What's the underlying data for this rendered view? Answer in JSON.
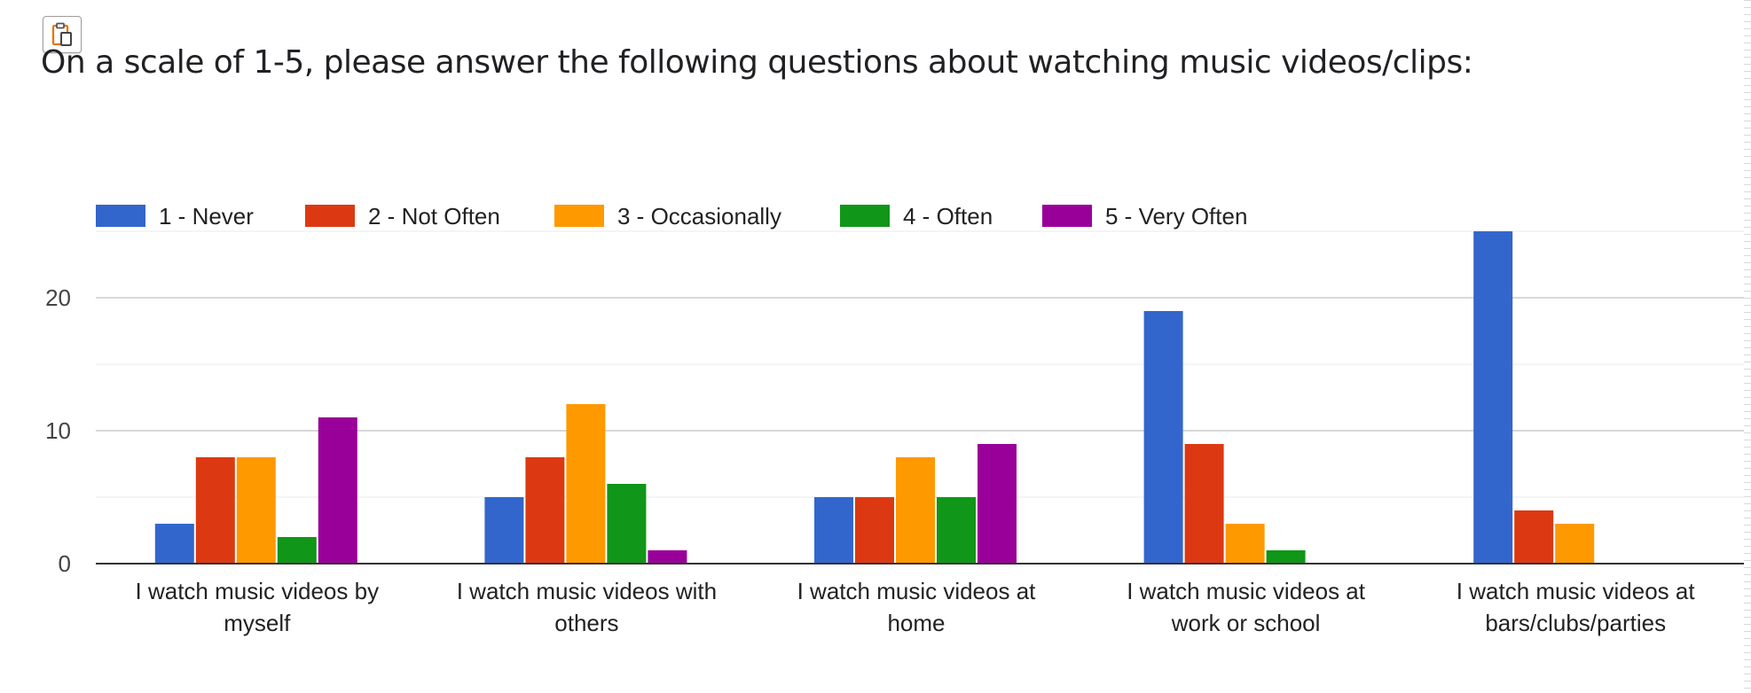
{
  "title": "On a scale of 1-5, please answer the following questions about watching music videos/clips:",
  "copy_icon": "clipboard-copy-icon",
  "chart_data": {
    "type": "bar",
    "categories": [
      [
        "I watch music videos by",
        "myself"
      ],
      [
        "I watch music videos with",
        "others"
      ],
      [
        "I watch music videos at",
        "home"
      ],
      [
        "I watch music videos at",
        "work or school"
      ],
      [
        "I watch music videos at",
        "bars/clubs/parties"
      ]
    ],
    "series": [
      {
        "name": "1 - Never",
        "color": "#3366cc",
        "values": [
          3,
          5,
          5,
          19,
          25
        ]
      },
      {
        "name": "2 - Not Often",
        "color": "#dc3912",
        "values": [
          8,
          8,
          5,
          9,
          4
        ]
      },
      {
        "name": "3 - Occasionally",
        "color": "#ff9900",
        "values": [
          8,
          12,
          8,
          3,
          3
        ]
      },
      {
        "name": "4 - Often",
        "color": "#109618",
        "values": [
          2,
          6,
          5,
          1,
          0
        ]
      },
      {
        "name": "5 - Very Often",
        "color": "#990099",
        "values": [
          11,
          1,
          9,
          0,
          0
        ]
      }
    ],
    "yticks": [
      0,
      10,
      20
    ],
    "ylim": [
      0,
      25
    ],
    "grid": true,
    "legend": "top-left",
    "xlabel": "",
    "ylabel": ""
  }
}
